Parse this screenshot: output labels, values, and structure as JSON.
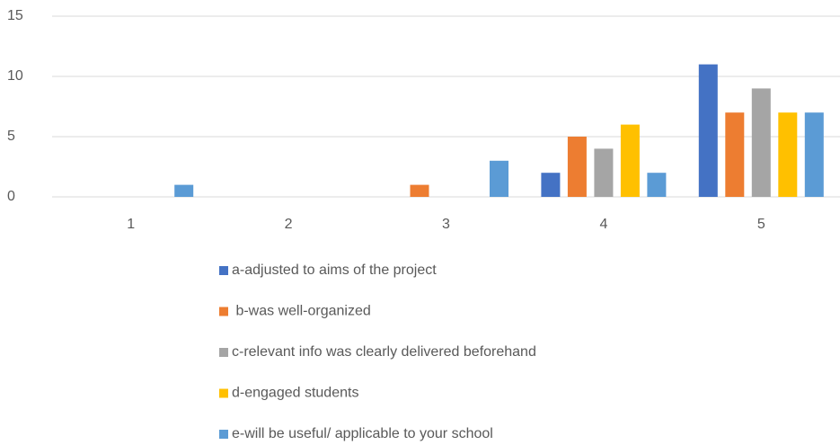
{
  "chart_data": {
    "type": "bar",
    "categories": [
      "1",
      "2",
      "3",
      "4",
      "5"
    ],
    "series": [
      {
        "name": "a-adjusted to aims of the project",
        "color": "#4472c4",
        "values": [
          0,
          0,
          0,
          2,
          11
        ]
      },
      {
        "name": " b-was well-organized",
        "color": "#ed7d31",
        "values": [
          0,
          0,
          1,
          5,
          7
        ]
      },
      {
        "name": "c-relevant info was clearly delivered beforehand",
        "color": "#a5a5a5",
        "values": [
          0,
          0,
          0,
          4,
          9
        ]
      },
      {
        "name": "d-engaged students",
        "color": "#ffc000",
        "values": [
          0,
          0,
          0,
          6,
          7
        ]
      },
      {
        "name": "e-will be useful/ applicable to your school",
        "color": "#5b9bd5",
        "values": [
          1,
          0,
          3,
          2,
          7
        ]
      }
    ],
    "ylim": [
      0,
      15
    ],
    "yticks": [
      0,
      5,
      10,
      15
    ],
    "grid": true,
    "legend": "bottom"
  }
}
